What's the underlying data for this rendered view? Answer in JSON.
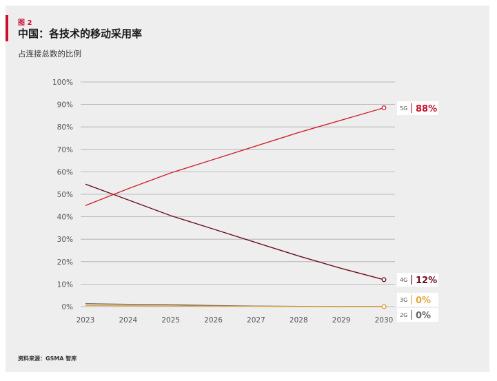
{
  "header": {
    "figure_label": "图 2",
    "title": "中国：各技术的移动采用率",
    "subtitle": "占连接总数的比例"
  },
  "footer": {
    "source": "资料来源：GSMA 智库"
  },
  "colors": {
    "accent": "#c8102e",
    "5G": "#d0222f",
    "4G": "#6d0b1c",
    "3G": "#e8a33c",
    "2G": "#666666",
    "grid": "#aaaaaa"
  },
  "chart_data": {
    "type": "line",
    "title": "中国：各技术的移动采用率",
    "subtitle": "占连接总数的比例",
    "xlabel": "",
    "ylabel": "",
    "x": [
      "2023",
      "2024",
      "2025",
      "2026",
      "2027",
      "2028",
      "2029",
      "2030"
    ],
    "y_ticks": [
      "0%",
      "10%",
      "20%",
      "30%",
      "40%",
      "50%",
      "60%",
      "70%",
      "80%",
      "90%",
      "100%"
    ],
    "ylim": [
      0,
      100
    ],
    "grid": "horizontal",
    "series": [
      {
        "name": "5G",
        "color": "#d0222f",
        "values": [
          45,
          52.5,
          59.5,
          65.5,
          71.5,
          77.5,
          83,
          88.5
        ],
        "end_label": "88%"
      },
      {
        "name": "4G",
        "color": "#6d0b1c",
        "values": [
          54.5,
          47.5,
          40.5,
          34.5,
          28.5,
          22.5,
          17,
          12
        ],
        "end_label": "12%"
      },
      {
        "name": "3G",
        "color": "#e8a33c",
        "values": [
          0.5,
          0.4,
          0.3,
          0.2,
          0.1,
          0,
          0,
          0
        ],
        "end_label": "0%"
      },
      {
        "name": "2G",
        "color": "#666666",
        "values": [
          1.3,
          1,
          0.8,
          0.5,
          0.2,
          0.1,
          0,
          0
        ],
        "end_label": "0%"
      }
    ]
  }
}
